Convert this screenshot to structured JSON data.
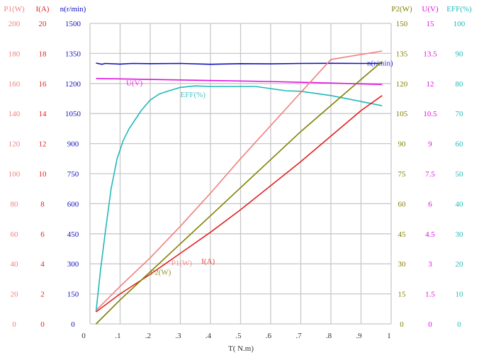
{
  "chart_data": {
    "type": "line",
    "xlabel": "T( N.m)",
    "xlim": [
      0,
      1
    ],
    "x_ticks": [
      "0",
      ".1",
      ".2",
      ".3",
      ".4",
      ".5",
      ".6",
      ".7",
      ".8",
      ".9",
      "1"
    ],
    "grid": true,
    "axes": [
      {
        "key": "P1",
        "label": "P1(W)",
        "side": "left",
        "range": [
          0,
          200
        ],
        "ticks": [
          "0",
          "20",
          "40",
          "60",
          "80",
          "100",
          "120",
          "140",
          "160",
          "180",
          "200"
        ],
        "color": "#f08080"
      },
      {
        "key": "I",
        "label": "I(A)",
        "side": "left",
        "range": [
          0,
          20
        ],
        "ticks": [
          "0",
          "2",
          "4",
          "6",
          "8",
          "10",
          "12",
          "14",
          "16",
          "18",
          "20"
        ],
        "color": "#e02020"
      },
      {
        "key": "n",
        "label": "n(r/min)",
        "side": "left",
        "range": [
          0,
          1500
        ],
        "ticks": [
          "0",
          "150",
          "300",
          "450",
          "600",
          "750",
          "900",
          "1050",
          "1200",
          "1350",
          "1500"
        ],
        "color": "#1010c0"
      },
      {
        "key": "P2",
        "label": "P2(W)",
        "side": "right",
        "range": [
          0,
          150
        ],
        "ticks": [
          "0",
          "15",
          "30",
          "45",
          "60",
          "75",
          "90",
          "105",
          "120",
          "135",
          "150"
        ],
        "color": "#808000"
      },
      {
        "key": "U",
        "label": "U(V)",
        "side": "right",
        "range": [
          0,
          15
        ],
        "ticks": [
          "0",
          "1.5",
          "3",
          "4.5",
          "6",
          "7.5",
          "9",
          "10.5",
          "12",
          "13.5",
          "15"
        ],
        "color": "#e010e0"
      },
      {
        "key": "EFF",
        "label": "EFF(%)",
        "side": "right",
        "range": [
          0,
          100
        ],
        "ticks": [
          "0",
          "10",
          "20",
          "30",
          "40",
          "50",
          "60",
          "70",
          "80",
          "90",
          "100"
        ],
        "color": "#20b8b8"
      }
    ],
    "series": [
      {
        "name": "n(r/min)",
        "axis": "n",
        "color": "#1010c0",
        "label_at": [
          0.92,
          1290
        ],
        "points": [
          [
            0.02,
            1302
          ],
          [
            0.04,
            1296
          ],
          [
            0.05,
            1300
          ],
          [
            0.1,
            1297
          ],
          [
            0.14,
            1300
          ],
          [
            0.2,
            1299
          ],
          [
            0.3,
            1300
          ],
          [
            0.4,
            1296
          ],
          [
            0.5,
            1299
          ],
          [
            0.6,
            1298
          ],
          [
            0.7,
            1300
          ],
          [
            0.8,
            1301
          ],
          [
            0.9,
            1300
          ],
          [
            0.97,
            1300
          ]
        ]
      },
      {
        "name": "U(V)",
        "axis": "U",
        "color": "#e010e0",
        "label_at": [
          0.12,
          11.9
        ],
        "points": [
          [
            0.02,
            12.25
          ],
          [
            0.2,
            12.2
          ],
          [
            0.4,
            12.15
          ],
          [
            0.6,
            12.1
          ],
          [
            0.8,
            12.02
          ],
          [
            0.97,
            11.95
          ]
        ]
      },
      {
        "name": "EFF(%)",
        "axis": "EFF",
        "color": "#20b8b8",
        "label_at": [
          0.3,
          75.5
        ],
        "points": [
          [
            0.02,
            4
          ],
          [
            0.035,
            18
          ],
          [
            0.05,
            30
          ],
          [
            0.07,
            45
          ],
          [
            0.09,
            55
          ],
          [
            0.11,
            61
          ],
          [
            0.13,
            65
          ],
          [
            0.17,
            71
          ],
          [
            0.2,
            74.5
          ],
          [
            0.23,
            76.5
          ],
          [
            0.26,
            77.5
          ],
          [
            0.3,
            78.7
          ],
          [
            0.35,
            79.2
          ],
          [
            0.4,
            79
          ],
          [
            0.55,
            79
          ],
          [
            0.6,
            78.3
          ],
          [
            0.65,
            77.6
          ],
          [
            0.7,
            77.4
          ],
          [
            0.8,
            76
          ],
          [
            0.9,
            74
          ],
          [
            0.97,
            72.6
          ]
        ]
      },
      {
        "name": "P1(W)",
        "axis": "P1",
        "color": "#f08080",
        "label_at": [
          0.27,
          39
        ],
        "points": [
          [
            0.02,
            9
          ],
          [
            0.1,
            25
          ],
          [
            0.2,
            44
          ],
          [
            0.3,
            65
          ],
          [
            0.4,
            87
          ],
          [
            0.5,
            110
          ],
          [
            0.6,
            132
          ],
          [
            0.7,
            154
          ],
          [
            0.8,
            176
          ],
          [
            0.9,
            172
          ],
          [
            0.97,
            181.6
          ]
        ]
      },
      {
        "name": "I(A)",
        "axis": "I",
        "color": "#e02020",
        "label_at": [
          0.37,
          4.0
        ],
        "points": [
          [
            0.02,
            0.8
          ],
          [
            0.1,
            2.0
          ],
          [
            0.2,
            3.3
          ],
          [
            0.3,
            4.7
          ],
          [
            0.4,
            6.1
          ],
          [
            0.5,
            7.6
          ],
          [
            0.6,
            9.2
          ],
          [
            0.7,
            10.8
          ],
          [
            0.8,
            12.5
          ],
          [
            0.9,
            14.2
          ],
          [
            0.97,
            15.2
          ]
        ]
      },
      {
        "name": "P2(W)",
        "axis": "P2",
        "color": "#808000",
        "label_at": [
          0.2,
          24.5
        ],
        "points": [
          [
            0.02,
            0
          ],
          [
            0.1,
            12
          ],
          [
            0.2,
            26
          ],
          [
            0.3,
            40
          ],
          [
            0.4,
            54
          ],
          [
            0.5,
            68
          ],
          [
            0.6,
            82
          ],
          [
            0.7,
            96
          ],
          [
            0.8,
            109
          ],
          [
            0.9,
            122
          ],
          [
            0.97,
            131
          ]
        ]
      }
    ]
  }
}
